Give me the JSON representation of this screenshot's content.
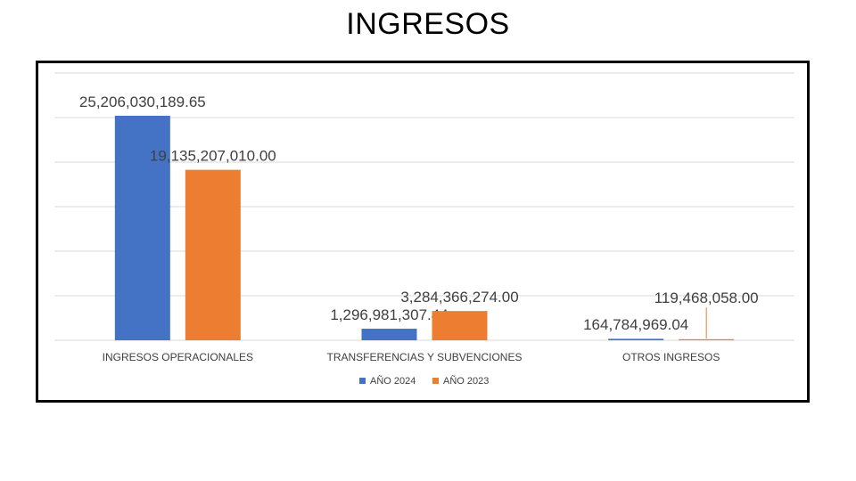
{
  "title": "INGRESOS",
  "chart_data": {
    "type": "bar",
    "title": "INGRESOS",
    "xlabel": "",
    "ylabel": "",
    "categories": [
      "INGRESOS OPERACIONALES",
      "TRANSFERENCIAS Y SUBVENCIONES",
      "OTROS INGRESOS"
    ],
    "series": [
      {
        "name": "AÑO 2024",
        "color": "#4472C4",
        "values": [
          25206030189.65,
          1296981307.44,
          164784969.04
        ],
        "labels": [
          "25,206,030,189.65",
          "1,296,981,307.44",
          "164,784,969.04"
        ]
      },
      {
        "name": "AÑO 2023",
        "color": "#ED7D31",
        "values": [
          19135207010.0,
          3284366274.0,
          119468058.0
        ],
        "labels": [
          "19,135,207,010.00",
          "3,284,366,274.00",
          "119,468,058.00"
        ]
      }
    ],
    "ylim": [
      0,
      30000000000
    ],
    "grid": true,
    "legend": "bottom"
  }
}
